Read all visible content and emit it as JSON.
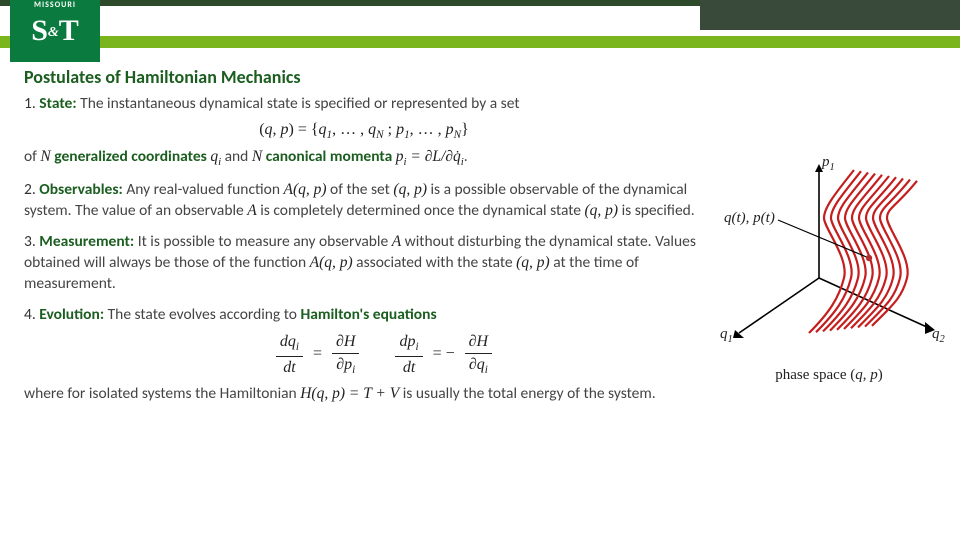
{
  "logo": {
    "missouri": "MISSOURI",
    "st": "S",
    "amp": "&",
    "t": "T"
  },
  "title": "Postulates of Hamiltonian Mechanics",
  "p1": {
    "num": "1.",
    "head": "State:",
    "txt1": "The instantaneous dynamical state is specified or represented by a set",
    "eq_set": "(q, p) = {q₁, … , q_N ; p₁, … , p_N}",
    "txt2a": "of ",
    "N1": "N",
    "emph1": " generalized coordinates ",
    "qi": "q_i",
    "txt2b": " and ",
    "N2": "N",
    "emph2": " canonical momenta ",
    "pi_def": "p_i = ∂L/∂q̇_i",
    "dot": "."
  },
  "p2": {
    "num": "2.",
    "head": "Observables:",
    "txt1": "Any real-valued function ",
    "Aqp": "A(q, p)",
    "txt2": " of the set ",
    "qp": "(q, p)",
    "txt3": " is a possible observable of the dynamical system. The value of an observable ",
    "A": "A",
    "txt4": " is completely determined once the dynamical state ",
    "qp2": "(q, p)",
    "txt5": " is specified."
  },
  "p3": {
    "num": "3.",
    "head": "Measurement:",
    "txt1": "It is possible to measure any observable ",
    "A": "A",
    "txt2": " without disturbing the dynamical state. Values obtained will always be those of the function ",
    "Aqp": "A(q, p)",
    "txt3": " associated with the state ",
    "qp": "(q, p)",
    "txt4": " at the time of measurement."
  },
  "p4": {
    "num": "4.",
    "head": "Evolution:",
    "txt1": "The state evolves according to ",
    "emph": "Hamilton's equations",
    "eq_dq_top": "dq_i",
    "eq_dt": "dt",
    "eq_eq": "=",
    "eq_dHp_top": "∂H",
    "eq_dHp_bot": "∂p_i",
    "eq_dp_top": "dp_i",
    "eq_neg": "= −",
    "eq_dHq_top": "∂H",
    "eq_dHq_bot": "∂q_i",
    "txt2": "where for isolated systems the Hamiltonian ",
    "Hqp": "H(q, p) = T + V",
    "txt3": " is usually the total energy of the system."
  },
  "figure": {
    "p1": "p₁",
    "q1": "q₁",
    "q2": "q₂",
    "qt_pt": "q(t), p(t)",
    "caption": "phase space (q, p)",
    "trajectory_color": "#c41e1e",
    "axis_color": "#000000",
    "point_color": "#b03030",
    "n_trajectories": 10,
    "traj_spacing": 7,
    "traj_width": 2.2
  }
}
